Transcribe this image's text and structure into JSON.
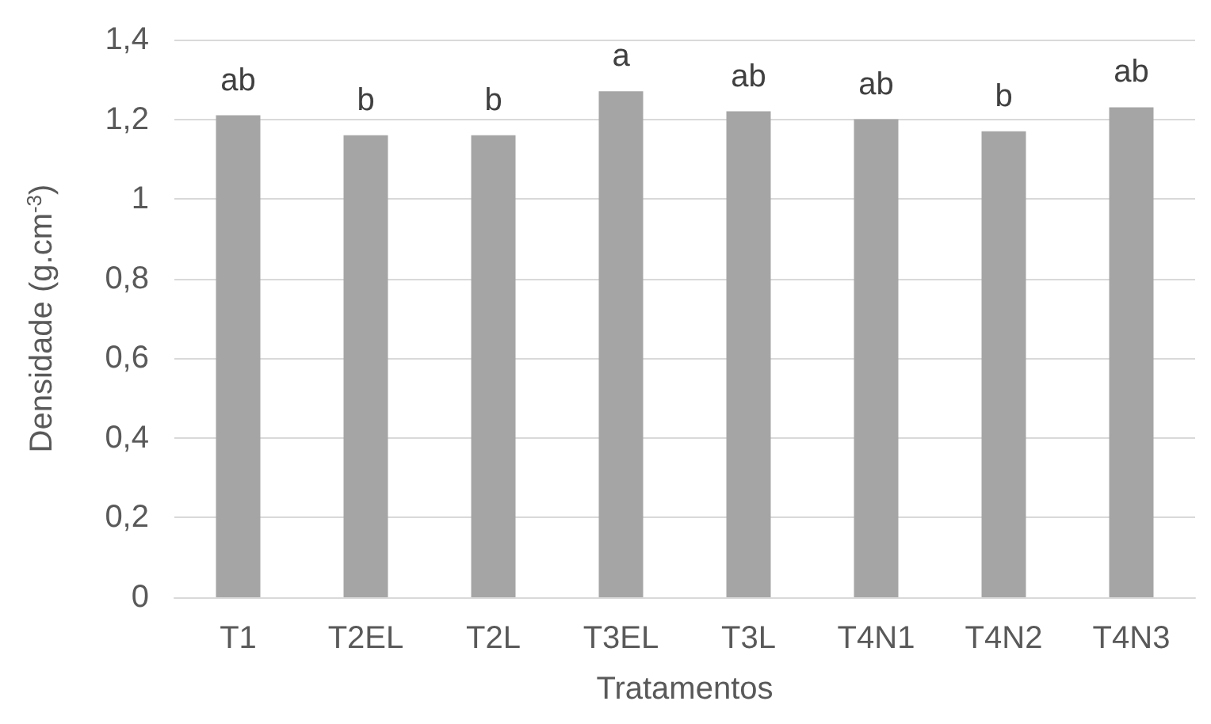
{
  "chart_data": {
    "type": "bar",
    "xlabel": "Tratamentos",
    "ylabel": "Densidade (g.cm$^{-3}$)",
    "categories": [
      "T1",
      "T2EL",
      "T2L",
      "T3EL",
      "T3L",
      "T4N1",
      "T4N2",
      "T4N3"
    ],
    "values": [
      1.21,
      1.16,
      1.16,
      1.27,
      1.22,
      1.2,
      1.17,
      1.23
    ],
    "value_labels": [
      "ab",
      "b",
      "b",
      "a",
      "ab",
      "ab",
      "b",
      "ab"
    ],
    "color": "#a5a5a5",
    "ylim": [
      0,
      1.4
    ],
    "yticks": [
      {
        "value": 0,
        "label": "0"
      },
      {
        "value": 0.2,
        "label": "0,2"
      },
      {
        "value": 0.4,
        "label": "0,4"
      },
      {
        "value": 0.6,
        "label": "0,6"
      },
      {
        "value": 0.8,
        "label": "0,8"
      },
      {
        "value": 1,
        "label": "1"
      },
      {
        "value": 1.2,
        "label": "1,2"
      },
      {
        "value": 1.4,
        "label": "1,4"
      }
    ],
    "grid": "y"
  }
}
